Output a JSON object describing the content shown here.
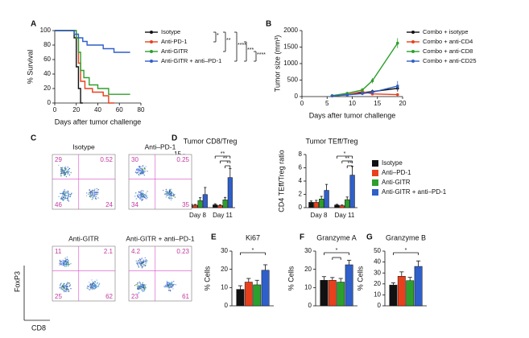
{
  "panel_labels": [
    "A",
    "B",
    "C",
    "D",
    "E",
    "F",
    "G"
  ],
  "chart_data": [
    {
      "type": "line",
      "y_label": "% Survival",
      "x_label": "Days after tumor challenge",
      "xlim": [
        0,
        80
      ],
      "xticks": [
        0,
        20,
        40,
        60,
        80
      ],
      "ylim": [
        0,
        100
      ],
      "yticks": [
        0,
        20,
        40,
        60,
        80,
        100
      ],
      "series": [
        {
          "name": "Isotype",
          "color": "#111111",
          "x": [
            0,
            18,
            18,
            20,
            20,
            22,
            22,
            24,
            24,
            26
          ],
          "values": [
            100,
            100,
            90,
            90,
            50,
            50,
            20,
            20,
            0,
            0
          ]
        },
        {
          "name": "Anti-PD-1",
          "color": "#e8401c",
          "x": [
            0,
            20,
            20,
            22,
            22,
            24,
            24,
            28,
            28,
            35,
            35,
            45,
            45,
            50,
            50,
            55
          ],
          "values": [
            100,
            100,
            90,
            90,
            55,
            55,
            30,
            30,
            20,
            20,
            15,
            15,
            10,
            10,
            0,
            0
          ]
        },
        {
          "name": "Anti-GITR",
          "color": "#2ca02c",
          "x": [
            0,
            20,
            20,
            22,
            22,
            24,
            24,
            27,
            27,
            32,
            32,
            40,
            40,
            50,
            50,
            70
          ],
          "values": [
            100,
            100,
            90,
            90,
            70,
            70,
            45,
            45,
            35,
            35,
            25,
            25,
            20,
            20,
            12,
            12
          ]
        },
        {
          "name": "Anti-GITR + anti–PD-1",
          "color": "#2f5fc9",
          "x": [
            0,
            18,
            18,
            22,
            22,
            26,
            26,
            30,
            30,
            45,
            45,
            55,
            55,
            70
          ],
          "values": [
            100,
            100,
            95,
            95,
            90,
            90,
            85,
            85,
            80,
            80,
            75,
            75,
            70,
            70
          ]
        }
      ],
      "annotations": [
        "*",
        "**",
        "****",
        "***",
        "****"
      ]
    },
    {
      "type": "line",
      "y_label": "Tumor size (mm³)",
      "x_label": "Days after tumor challenge",
      "x": [
        6,
        9,
        12,
        14,
        19
      ],
      "xlim": [
        0,
        20
      ],
      "xticks": [
        0,
        5,
        10,
        15,
        20
      ],
      "ylim": [
        0,
        2000
      ],
      "yticks": [
        0,
        500,
        1000,
        1500,
        2000
      ],
      "series": [
        {
          "name": "Combo + isotype",
          "color": "#111111",
          "values": [
            20,
            60,
            120,
            150,
            250
          ],
          "errors": [
            10,
            30,
            50,
            60,
            100
          ]
        },
        {
          "name": "Combo + anti-CD4",
          "color": "#e8401c",
          "values": [
            20,
            60,
            150,
            80,
            60
          ],
          "errors": [
            10,
            20,
            60,
            40,
            30
          ]
        },
        {
          "name": "Combo + anti-CD8",
          "color": "#2ca02c",
          "values": [
            30,
            100,
            200,
            480,
            1620
          ],
          "errors": [
            10,
            40,
            60,
            80,
            150
          ]
        },
        {
          "name": "Combo + anti-CD25",
          "color": "#2f5fc9",
          "values": [
            20,
            50,
            90,
            130,
            320
          ],
          "errors": [
            10,
            20,
            40,
            60,
            150
          ]
        }
      ]
    },
    {
      "type": "bar",
      "title": "Tumor CD8/Treg",
      "y_label": "CD8/Treg ratio",
      "categories": [
        "Day 8",
        "Day 11"
      ],
      "ylim": [
        0,
        15
      ],
      "yticks": [
        0,
        5,
        10,
        15
      ],
      "series": [
        {
          "name": "Isotype",
          "color": "#111111",
          "values": [
            1.0,
            0.8
          ],
          "errors": [
            0.3,
            0.3
          ]
        },
        {
          "name": "Anti–PD-1",
          "color": "#e8401c",
          "values": [
            0.7,
            0.6
          ],
          "errors": [
            0.2,
            0.2
          ]
        },
        {
          "name": "Anti-GITR",
          "color": "#2ca02c",
          "values": [
            2.0,
            2.2
          ],
          "errors": [
            0.8,
            0.7
          ]
        },
        {
          "name": "Anti-GITR + anti–PD-1",
          "color": "#2f5fc9",
          "values": [
            3.7,
            8.5
          ],
          "errors": [
            2.0,
            2.5
          ]
        }
      ],
      "annotations": [
        "**",
        "**",
        "*"
      ]
    },
    {
      "type": "bar",
      "title": "Tumor TEff/Treg",
      "y_label": "CD4 TEff/Treg ratio",
      "categories": [
        "Day 8",
        "Day 11"
      ],
      "ylim": [
        0,
        8
      ],
      "yticks": [
        0,
        2,
        4,
        6,
        8
      ],
      "series": [
        {
          "color": "#111111",
          "values": [
            0.8,
            0.4
          ],
          "errors": [
            0.2,
            0.1
          ]
        },
        {
          "color": "#e8401c",
          "values": [
            0.8,
            0.3
          ],
          "errors": [
            0.3,
            0.1
          ]
        },
        {
          "color": "#2ca02c",
          "values": [
            1.3,
            1.2
          ],
          "errors": [
            0.4,
            0.4
          ]
        },
        {
          "color": "#2f5fc9",
          "values": [
            2.6,
            4.9
          ],
          "errors": [
            0.9,
            1.3
          ]
        }
      ],
      "annotations": [
        "*",
        "**",
        "**"
      ]
    },
    {
      "type": "bar",
      "title": "Ki67",
      "y_label": "% Cells",
      "ylim": [
        0,
        30
      ],
      "yticks": [
        0,
        10,
        20,
        30
      ],
      "values": [
        9,
        13,
        11.5,
        19.5
      ],
      "errors": [
        2,
        2,
        2.5,
        3
      ],
      "colors": [
        "#111111",
        "#e8401c",
        "#2ca02c",
        "#2f5fc9"
      ],
      "annotations": [
        "*"
      ]
    },
    {
      "type": "bar",
      "title": "Granzyme A",
      "y_label": "% Cells",
      "ylim": [
        0,
        30
      ],
      "yticks": [
        0,
        10,
        20,
        30
      ],
      "values": [
        14,
        14,
        13,
        22.5
      ],
      "errors": [
        2,
        1.5,
        2,
        2.5
      ],
      "colors": [
        "#111111",
        "#e8401c",
        "#2ca02c",
        "#2f5fc9"
      ],
      "annotations": [
        "*"
      ]
    },
    {
      "type": "bar",
      "title": "Granzyme B",
      "y_label": "% Cells",
      "ylim": [
        0,
        50
      ],
      "yticks": [
        0,
        10,
        20,
        30,
        40,
        50
      ],
      "values": [
        19,
        27,
        23,
        36
      ],
      "errors": [
        2,
        4,
        3,
        5
      ],
      "colors": [
        "#111111",
        "#e8401c",
        "#2ca02c",
        "#2f5fc9"
      ],
      "annotations": [
        "*"
      ]
    }
  ],
  "flow": {
    "y_label": "FoxP3",
    "x_label": "CD8",
    "plots": [
      {
        "title": "Isotype",
        "quadrants": [
          "29",
          "0.52",
          "46",
          "24"
        ]
      },
      {
        "title": "Anti–PD-1",
        "quadrants": [
          "30",
          "0.25",
          "34",
          "35"
        ]
      },
      {
        "title": "Anti-GITR",
        "quadrants": [
          "11",
          "2.1",
          "25",
          "62"
        ]
      },
      {
        "title": "Anti-GITR + anti–PD-1",
        "quadrants": [
          "4.2",
          "0.23",
          "23",
          "61"
        ]
      }
    ]
  }
}
